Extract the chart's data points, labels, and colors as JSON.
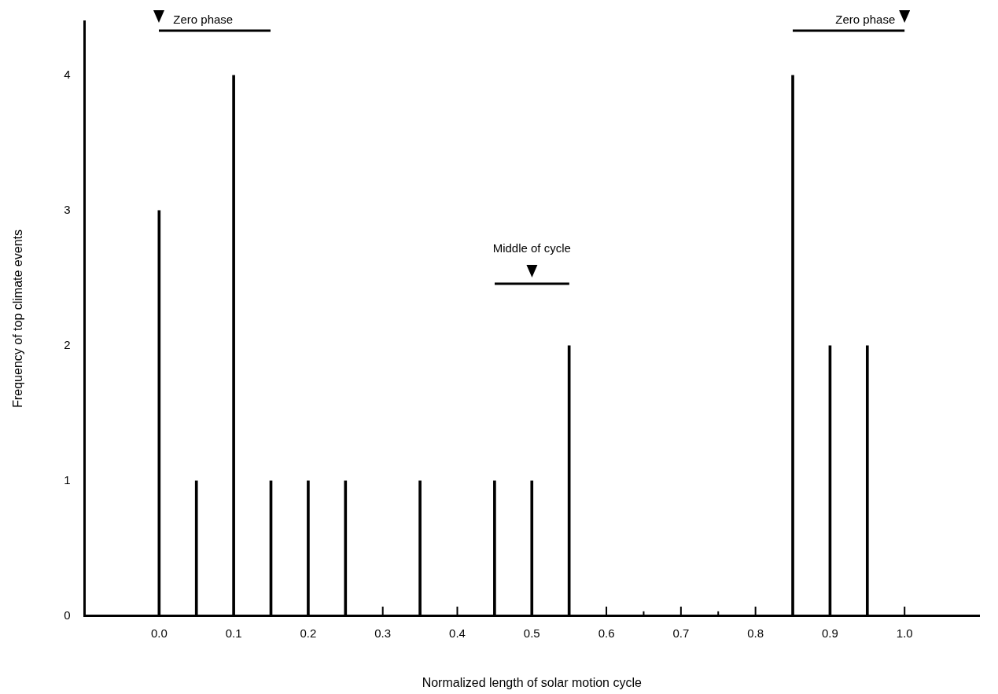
{
  "chart_data": {
    "type": "bar",
    "xlabel": "Normalized length of solar motion cycle",
    "ylabel": "Frequency of top climate events",
    "x": [
      0.0,
      0.05,
      0.1,
      0.15,
      0.2,
      0.25,
      0.35,
      0.45,
      0.5,
      0.55,
      0.85,
      0.9,
      0.95
    ],
    "values": [
      3,
      1,
      4,
      1,
      1,
      1,
      1,
      1,
      1,
      2,
      4,
      2,
      2
    ],
    "color": "#000000",
    "xlim": [
      -0.1,
      1.1
    ],
    "xticks": [
      {
        "value": 0,
        "label": "0.0"
      },
      0.1,
      0.2,
      0.3,
      0.4,
      0.5,
      0.6,
      0.7,
      0.8,
      0.9,
      {
        "value": 1,
        "label": "1.0"
      },
      {
        "value": 0.05,
        "label": null
      },
      {
        "value": 0.15,
        "label": null
      },
      {
        "value": 0.25,
        "label": null
      },
      {
        "value": 0.35,
        "label": null
      },
      {
        "value": 0.45,
        "label": null
      },
      {
        "value": 0.55,
        "label": null
      },
      {
        "value": 0.65,
        "label": null
      },
      {
        "value": 0.75,
        "label": null
      },
      {
        "value": 0.85,
        "label": null
      },
      {
        "value": 0.95,
        "label": null
      }
    ],
    "ylim": [
      0,
      4.4
    ],
    "yticks": [
      0,
      1,
      2,
      3,
      4
    ],
    "grid": false,
    "legend": false,
    "annotations": [
      "Zero phase",
      "Middle of cycle",
      "Zero phase"
    ]
  }
}
